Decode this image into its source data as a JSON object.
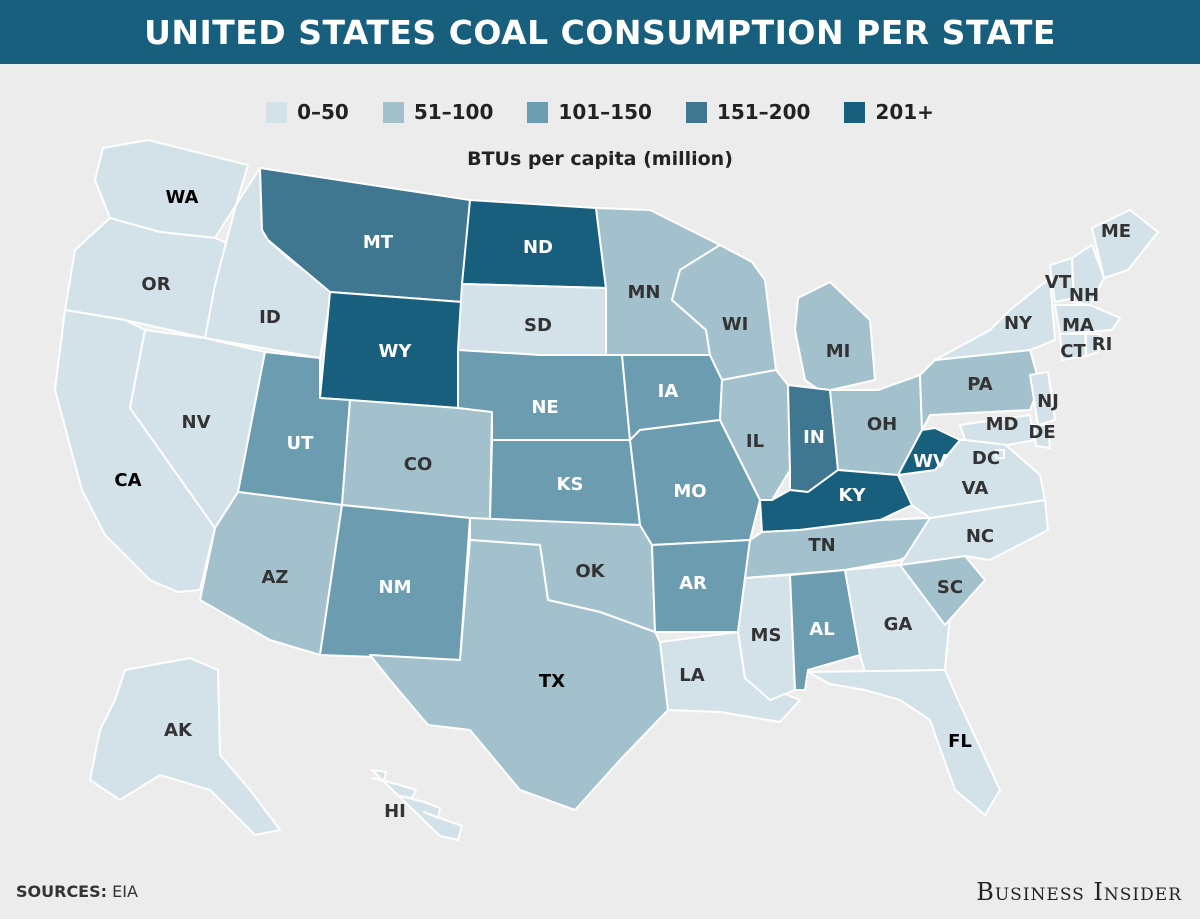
{
  "title": "UNITED STATES COAL CONSUMPTION PER STATE",
  "unit_label": "BTUs per capita (million)",
  "legend": [
    {
      "label": "0–50",
      "color": "#d3e1e8"
    },
    {
      "label": "51–100",
      "color": "#a3c0cd"
    },
    {
      "label": "101–150",
      "color": "#6b9cb0"
    },
    {
      "label": "151–200",
      "color": "#3f7791"
    },
    {
      "label": "201+",
      "color": "#175f7d"
    }
  ],
  "footer": {
    "source_label": "SOURCES:",
    "source_value": "EIA",
    "brand": "Business Insider"
  },
  "states": [
    {
      "abbr": "WA",
      "bin": 0
    },
    {
      "abbr": "OR",
      "bin": 0
    },
    {
      "abbr": "CA",
      "bin": 0
    },
    {
      "abbr": "ID",
      "bin": 0
    },
    {
      "abbr": "NV",
      "bin": 0
    },
    {
      "abbr": "MT",
      "bin": 3
    },
    {
      "abbr": "WY",
      "bin": 4
    },
    {
      "abbr": "UT",
      "bin": 2
    },
    {
      "abbr": "AZ",
      "bin": 1
    },
    {
      "abbr": "CO",
      "bin": 1
    },
    {
      "abbr": "NM",
      "bin": 2
    },
    {
      "abbr": "ND",
      "bin": 4
    },
    {
      "abbr": "SD",
      "bin": 0
    },
    {
      "abbr": "NE",
      "bin": 2
    },
    {
      "abbr": "KS",
      "bin": 2
    },
    {
      "abbr": "OK",
      "bin": 1
    },
    {
      "abbr": "TX",
      "bin": 1
    },
    {
      "abbr": "MN",
      "bin": 1
    },
    {
      "abbr": "IA",
      "bin": 2
    },
    {
      "abbr": "MO",
      "bin": 2
    },
    {
      "abbr": "AR",
      "bin": 2
    },
    {
      "abbr": "LA",
      "bin": 0
    },
    {
      "abbr": "WI",
      "bin": 1
    },
    {
      "abbr": "IL",
      "bin": 1
    },
    {
      "abbr": "MI",
      "bin": 1
    },
    {
      "abbr": "IN",
      "bin": 3
    },
    {
      "abbr": "OH",
      "bin": 1
    },
    {
      "abbr": "KY",
      "bin": 4
    },
    {
      "abbr": "TN",
      "bin": 1
    },
    {
      "abbr": "MS",
      "bin": 0
    },
    {
      "abbr": "AL",
      "bin": 2
    },
    {
      "abbr": "GA",
      "bin": 0
    },
    {
      "abbr": "FL",
      "bin": 0
    },
    {
      "abbr": "SC",
      "bin": 1
    },
    {
      "abbr": "NC",
      "bin": 0
    },
    {
      "abbr": "VA",
      "bin": 0
    },
    {
      "abbr": "WV",
      "bin": 4
    },
    {
      "abbr": "PA",
      "bin": 1
    },
    {
      "abbr": "NY",
      "bin": 0
    },
    {
      "abbr": "ME",
      "bin": 0
    },
    {
      "abbr": "VT",
      "bin": 0
    },
    {
      "abbr": "NH",
      "bin": 0
    },
    {
      "abbr": "MA",
      "bin": 0
    },
    {
      "abbr": "CT",
      "bin": 0
    },
    {
      "abbr": "RI",
      "bin": 0
    },
    {
      "abbr": "NJ",
      "bin": 0
    },
    {
      "abbr": "DE",
      "bin": 0
    },
    {
      "abbr": "MD",
      "bin": 0
    },
    {
      "abbr": "DC",
      "bin": 0
    },
    {
      "abbr": "AK",
      "bin": 0
    },
    {
      "abbr": "HI",
      "bin": 0
    }
  ]
}
